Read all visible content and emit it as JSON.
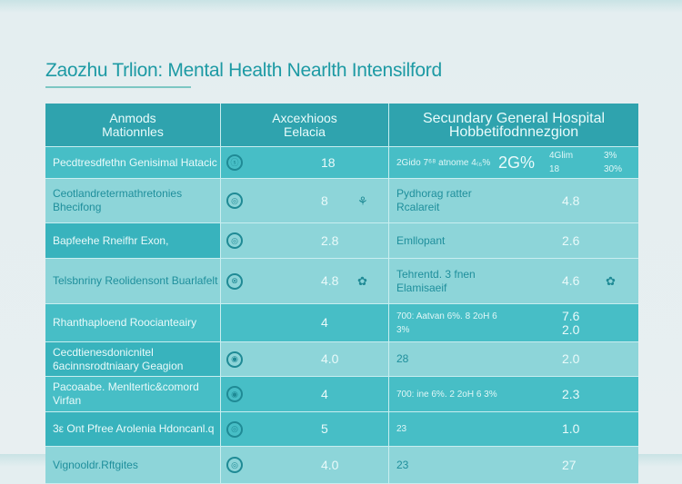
{
  "title": "Zaozhu Trlion: Mental Health Nearlth Intensilford",
  "headers": [
    {
      "line1": "Anmods",
      "line2": "Mationnles"
    },
    {
      "line1": "Axcexhioos",
      "line2": "Eelacia"
    },
    {
      "line1": "Secundary General Hospital",
      "line2": "Hobbetifodnnezgion"
    }
  ],
  "rows": [
    {
      "label": "Pecdtresdfethn Genisimal Hatacic",
      "a": "18",
      "b_text": "2Gido 7⁶⁸ atnome 4₍₆%",
      "b_big": "2G%",
      "b_num": "4Glim 18",
      "b_pct": "3% 30%"
    },
    {
      "label": "Ceotlandretermathretonies Bhecifong",
      "a": "8",
      "b_text": "Pydhorag ratter Rcalareit",
      "b_num": "4.8"
    },
    {
      "label": "Bapfeehe Rneifhr Exon,",
      "a": "2.8",
      "b_text": "Emllopant",
      "b_num": "2.6"
    },
    {
      "label": "Telsbnriny Reolidensont Buarlafelt",
      "a": "4.8",
      "b_text": "Tehrentd. 3 fnen Elamisaeif",
      "b_num": "4.6"
    },
    {
      "label": "Rhanthaploend Roocianteairy",
      "a": "4",
      "b_text": "700: Aatvan 6%. 8 2oH 6 3%",
      "b_num": "7.6 2.0"
    },
    {
      "label": "Cecdtienesdonicnitel 6acinnsrodtniaary Geagion",
      "a": "4.0",
      "b_text": "28",
      "b_num": "2.0"
    },
    {
      "label": "Pacoaabe. Menltertic&comord Virfan",
      "a": "4",
      "b_text": "700: ine 6%. 2 2oH 6 3%",
      "b_num": "2.3"
    },
    {
      "label": "3ε Ont Pfree Arolenia Hdoncanl.q",
      "a": "5",
      "b_text": "23",
      "b_num": "1.0"
    },
    {
      "label": "Vignooldr.Rftgites",
      "a": "4.0",
      "b_text": "23",
      "b_num": "27"
    }
  ]
}
